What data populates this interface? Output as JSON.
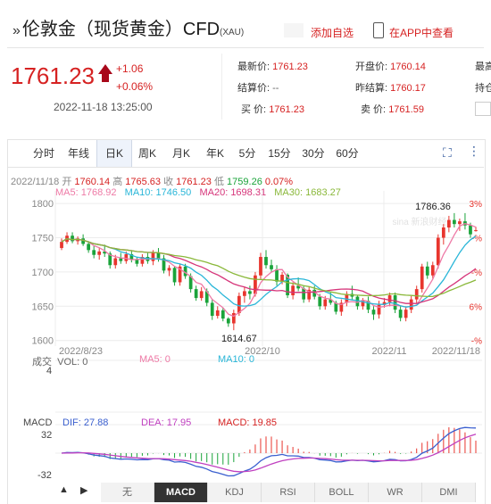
{
  "header": {
    "title": "伦敦金（现货黄金）CFD",
    "subtitle": "(XAU)",
    "add_watch": "添加自选",
    "app_view": "在APP中查看"
  },
  "quote": {
    "price": "1761.23",
    "change": "+1.06",
    "change_pct": "+0.06%",
    "datetime": "2022-11-18 13:25:00",
    "latest_label": "最新价:",
    "latest": "1761.23",
    "open_label": "开盘价:",
    "open": "1760.14",
    "settle_label": "结算价:",
    "settle": "--",
    "prev_settle_label": "昨结算:",
    "prev_settle": "1760.17",
    "buy_label": "买  价:",
    "buy": "1761.23",
    "sell_label": "卖  价:",
    "sell": "1761.59",
    "high_label_cut": "最高",
    "hold_label_cut": "持仓"
  },
  "tabs": [
    "分时",
    "年线",
    "日K",
    "周K",
    "月K",
    "年K",
    "5分",
    "15分",
    "30分",
    "60分"
  ],
  "active_tab": "日K",
  "kline_info": {
    "date": "2022/11/18",
    "open_label": "开",
    "open": "1760.14",
    "high_label": "高",
    "high": "1765.63",
    "low_label": "收",
    "close": "1761.23",
    "low_label2": "低",
    "low": "1759.26",
    "pct": "0.07%"
  },
  "ma_info": {
    "ma5": "MA5: 1768.92",
    "ma10": "MA10: 1746.50",
    "ma20": "MA20: 1698.31",
    "ma30": "MA30: 1683.27"
  },
  "vol_info": {
    "label": "成交",
    "vol": "VOL: 0",
    "ma5": "MA5: 0",
    "ma10": "MA10: 0",
    "vol_tick": "4"
  },
  "macd_info": {
    "label": "MACD",
    "dif": "DIF: 27.88",
    "dea": "DEA: 17.95",
    "macd": "MACD: 19.85",
    "tick_top": "32",
    "tick_bot": "-32"
  },
  "bottom_tabs": [
    "无",
    "MACD",
    "KDJ",
    "RSI",
    "BOLL",
    "WR",
    "DMI"
  ],
  "active_bottom": "MACD",
  "colors": {
    "up": "#e8352e",
    "down": "#1aa33a",
    "ma5": "#ee7aa6",
    "ma10": "#29b6d8",
    "ma20": "#d6357a",
    "ma30": "#8ab83a",
    "dif": "#3a5fcf",
    "dea": "#c040c0"
  },
  "chart_data": {
    "type": "candlestick",
    "y_ticks": [
      1800,
      1750,
      1700,
      1650,
      1600
    ],
    "pct_ticks": [
      "3%",
      "-%",
      "-%",
      "6%",
      "-%"
    ],
    "x_labels": [
      "2022/8/23",
      "2022/10",
      "2022/11",
      "2022/11/18"
    ],
    "annotations": {
      "max": "1786.36",
      "min": "1614.67"
    },
    "ylim": [
      1597,
      1808
    ],
    "candles": [
      [
        1735,
        1749,
        1732,
        1744
      ],
      [
        1744,
        1758,
        1741,
        1753
      ],
      [
        1753,
        1758,
        1742,
        1745
      ],
      [
        1745,
        1752,
        1740,
        1749
      ],
      [
        1749,
        1755,
        1738,
        1741
      ],
      [
        1741,
        1745,
        1728,
        1732
      ],
      [
        1732,
        1738,
        1720,
        1725
      ],
      [
        1725,
        1735,
        1718,
        1730
      ],
      [
        1730,
        1740,
        1722,
        1727
      ],
      [
        1727,
        1730,
        1705,
        1710
      ],
      [
        1710,
        1725,
        1705,
        1720
      ],
      [
        1720,
        1728,
        1712,
        1716
      ],
      [
        1716,
        1730,
        1712,
        1726
      ],
      [
        1726,
        1732,
        1714,
        1718
      ],
      [
        1718,
        1722,
        1708,
        1712
      ],
      [
        1712,
        1726,
        1708,
        1722
      ],
      [
        1722,
        1728,
        1712,
        1716
      ],
      [
        1716,
        1732,
        1710,
        1728
      ],
      [
        1728,
        1735,
        1715,
        1720
      ],
      [
        1720,
        1725,
        1698,
        1702
      ],
      [
        1702,
        1710,
        1694,
        1706
      ],
      [
        1706,
        1708,
        1680,
        1685
      ],
      [
        1685,
        1712,
        1680,
        1708
      ],
      [
        1708,
        1712,
        1690,
        1694
      ],
      [
        1694,
        1698,
        1670,
        1675
      ],
      [
        1675,
        1680,
        1658,
        1662
      ],
      [
        1662,
        1678,
        1658,
        1672
      ],
      [
        1672,
        1676,
        1650,
        1655
      ],
      [
        1655,
        1660,
        1630,
        1636
      ],
      [
        1636,
        1650,
        1632,
        1644
      ],
      [
        1644,
        1648,
        1628,
        1632
      ],
      [
        1632,
        1634,
        1620,
        1625
      ],
      [
        1625,
        1645,
        1615,
        1640
      ],
      [
        1640,
        1670,
        1636,
        1665
      ],
      [
        1665,
        1678,
        1655,
        1672
      ],
      [
        1672,
        1680,
        1660,
        1668
      ],
      [
        1668,
        1700,
        1664,
        1695
      ],
      [
        1695,
        1728,
        1690,
        1722
      ],
      [
        1722,
        1732,
        1705,
        1710
      ],
      [
        1710,
        1718,
        1700,
        1704
      ],
      [
        1704,
        1710,
        1680,
        1686
      ],
      [
        1686,
        1700,
        1682,
        1696
      ],
      [
        1696,
        1698,
        1662,
        1666
      ],
      [
        1666,
        1685,
        1660,
        1680
      ],
      [
        1680,
        1692,
        1672,
        1676
      ],
      [
        1676,
        1680,
        1655,
        1660
      ],
      [
        1660,
        1678,
        1656,
        1674
      ],
      [
        1674,
        1680,
        1660,
        1664
      ],
      [
        1664,
        1668,
        1645,
        1650
      ],
      [
        1650,
        1665,
        1645,
        1660
      ],
      [
        1660,
        1670,
        1652,
        1655
      ],
      [
        1655,
        1658,
        1638,
        1642
      ],
      [
        1642,
        1660,
        1636,
        1655
      ],
      [
        1655,
        1672,
        1650,
        1668
      ],
      [
        1668,
        1680,
        1660,
        1664
      ],
      [
        1664,
        1666,
        1645,
        1650
      ],
      [
        1650,
        1662,
        1645,
        1658
      ],
      [
        1658,
        1664,
        1640,
        1645
      ],
      [
        1645,
        1650,
        1630,
        1638
      ],
      [
        1638,
        1658,
        1632,
        1652
      ],
      [
        1652,
        1662,
        1648,
        1656
      ],
      [
        1656,
        1670,
        1650,
        1666
      ],
      [
        1666,
        1670,
        1640,
        1645
      ],
      [
        1645,
        1650,
        1628,
        1633
      ],
      [
        1633,
        1650,
        1628,
        1645
      ],
      [
        1645,
        1665,
        1640,
        1660
      ],
      [
        1660,
        1680,
        1655,
        1675
      ],
      [
        1675,
        1712,
        1670,
        1708
      ],
      [
        1708,
        1715,
        1690,
        1695
      ],
      [
        1695,
        1715,
        1690,
        1710
      ],
      [
        1710,
        1755,
        1705,
        1750
      ],
      [
        1750,
        1770,
        1740,
        1765
      ],
      [
        1765,
        1782,
        1758,
        1776
      ],
      [
        1776,
        1786,
        1765,
        1770
      ],
      [
        1770,
        1778,
        1760,
        1774
      ],
      [
        1774,
        1786,
        1762,
        1768
      ],
      [
        1768,
        1772,
        1750,
        1755
      ],
      [
        1760,
        1766,
        1759,
        1761
      ]
    ]
  }
}
